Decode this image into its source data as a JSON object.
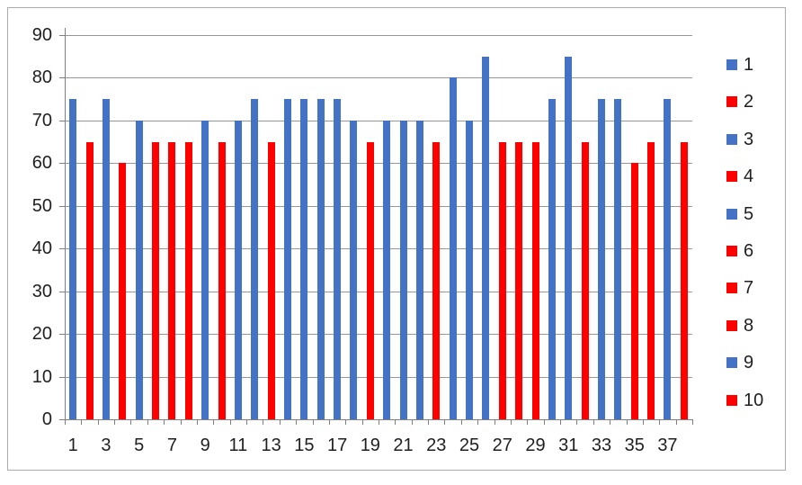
{
  "chart_data": {
    "type": "bar",
    "title": "",
    "xlabel": "",
    "ylabel": "",
    "ylim": [
      0,
      90
    ],
    "y_tick_interval": 10,
    "y_tick_labels": [
      "0",
      "10",
      "20",
      "30",
      "40",
      "50",
      "60",
      "70",
      "80",
      "90"
    ],
    "x_tick_labels_shown": [
      "1",
      "3",
      "5",
      "7",
      "9",
      "11",
      "13",
      "15",
      "17",
      "19",
      "21",
      "23",
      "25",
      "27",
      "29",
      "31",
      "33",
      "35",
      "37"
    ],
    "grid": true,
    "categories": [
      1,
      2,
      3,
      4,
      5,
      6,
      7,
      8,
      9,
      10,
      11,
      12,
      13,
      14,
      15,
      16,
      17,
      18,
      19,
      20,
      21,
      22,
      23,
      24,
      25,
      26,
      27,
      28,
      29,
      30,
      31,
      32,
      33,
      34,
      35,
      36,
      37,
      38
    ],
    "values": [
      75,
      65,
      75,
      60,
      70,
      65,
      65,
      65,
      70,
      65,
      70,
      75,
      65,
      75,
      75,
      75,
      75,
      70,
      65,
      70,
      70,
      70,
      65,
      80,
      70,
      85,
      65,
      65,
      65,
      75,
      85,
      65,
      75,
      75,
      60,
      65,
      75,
      65
    ],
    "bar_colors": [
      "blue",
      "red",
      "blue",
      "red",
      "blue",
      "red",
      "red",
      "red",
      "blue",
      "red",
      "blue",
      "blue",
      "red",
      "blue",
      "blue",
      "blue",
      "blue",
      "blue",
      "red",
      "blue",
      "blue",
      "blue",
      "red",
      "blue",
      "blue",
      "blue",
      "red",
      "red",
      "red",
      "blue",
      "blue",
      "red",
      "blue",
      "blue",
      "red",
      "red",
      "blue",
      "red"
    ],
    "legend": {
      "position": "right",
      "items": [
        {
          "label": "1",
          "color_key": "blue"
        },
        {
          "label": "2",
          "color_key": "red"
        },
        {
          "label": "3",
          "color_key": "blue"
        },
        {
          "label": "4",
          "color_key": "red"
        },
        {
          "label": "5",
          "color_key": "blue"
        },
        {
          "label": "6",
          "color_key": "red"
        },
        {
          "label": "7",
          "color_key": "red"
        },
        {
          "label": "8",
          "color_key": "red"
        },
        {
          "label": "9",
          "color_key": "blue"
        },
        {
          "label": "10",
          "color_key": "red"
        }
      ]
    }
  },
  "colors": {
    "blue": "#4472C4",
    "red": "#FF0000",
    "gridline": "#969696",
    "axis": "#7F7F7F",
    "frame_border": "#ABABAB",
    "text": "#1F1F1F",
    "background": "#FFFFFF"
  }
}
